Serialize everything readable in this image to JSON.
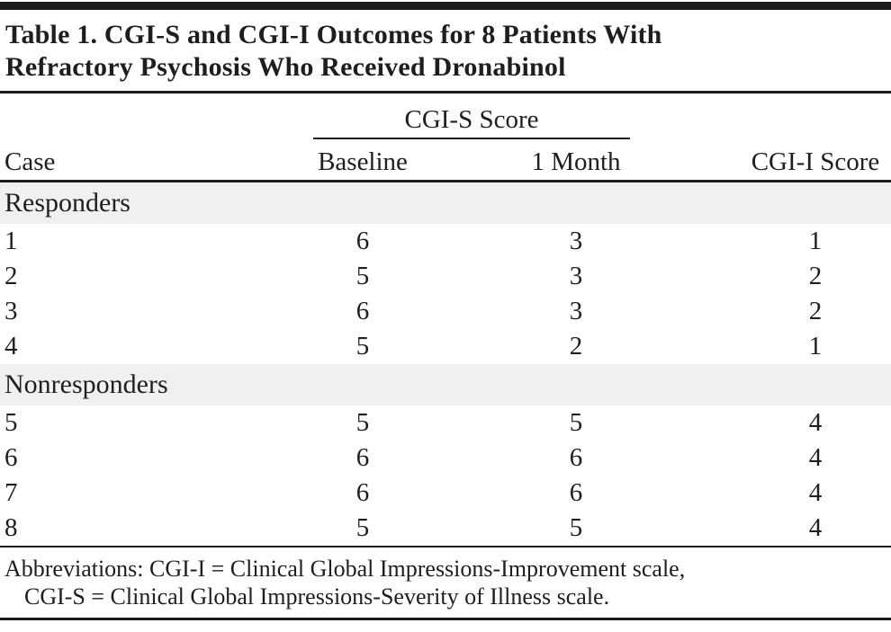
{
  "table": {
    "title_lines": [
      "Table 1. CGI-S and CGI-I Outcomes for 8 Patients With",
      "Refractory Psychosis Who Received Dronabinol"
    ],
    "header": {
      "spanner": "CGI-S Score",
      "columns": {
        "case": "Case",
        "baseline": "Baseline",
        "month1": "1 Month",
        "cgi_i": "CGI-I Score"
      }
    },
    "sections": [
      {
        "label": "Responders",
        "rows": [
          {
            "case": "1",
            "baseline": "6",
            "month1": "3",
            "cgi_i": "1"
          },
          {
            "case": "2",
            "baseline": "5",
            "month1": "3",
            "cgi_i": "2"
          },
          {
            "case": "3",
            "baseline": "6",
            "month1": "3",
            "cgi_i": "2"
          },
          {
            "case": "4",
            "baseline": "5",
            "month1": "2",
            "cgi_i": "1"
          }
        ]
      },
      {
        "label": "Nonresponders",
        "rows": [
          {
            "case": "5",
            "baseline": "5",
            "month1": "5",
            "cgi_i": "4"
          },
          {
            "case": "6",
            "baseline": "6",
            "month1": "6",
            "cgi_i": "4"
          },
          {
            "case": "7",
            "baseline": "6",
            "month1": "6",
            "cgi_i": "4"
          },
          {
            "case": "8",
            "baseline": "5",
            "month1": "5",
            "cgi_i": "4"
          }
        ]
      }
    ],
    "footnote_lines": [
      "Abbreviations: CGI-I = Clinical Global Impressions-Improvement scale,",
      "CGI-S = Clinical Global Impressions-Severity of Illness scale."
    ],
    "colors": {
      "text": "#1e1e1e",
      "rule": "#1c1c1c",
      "section_band": "#f0f0f0",
      "background": "#ffffff"
    }
  }
}
